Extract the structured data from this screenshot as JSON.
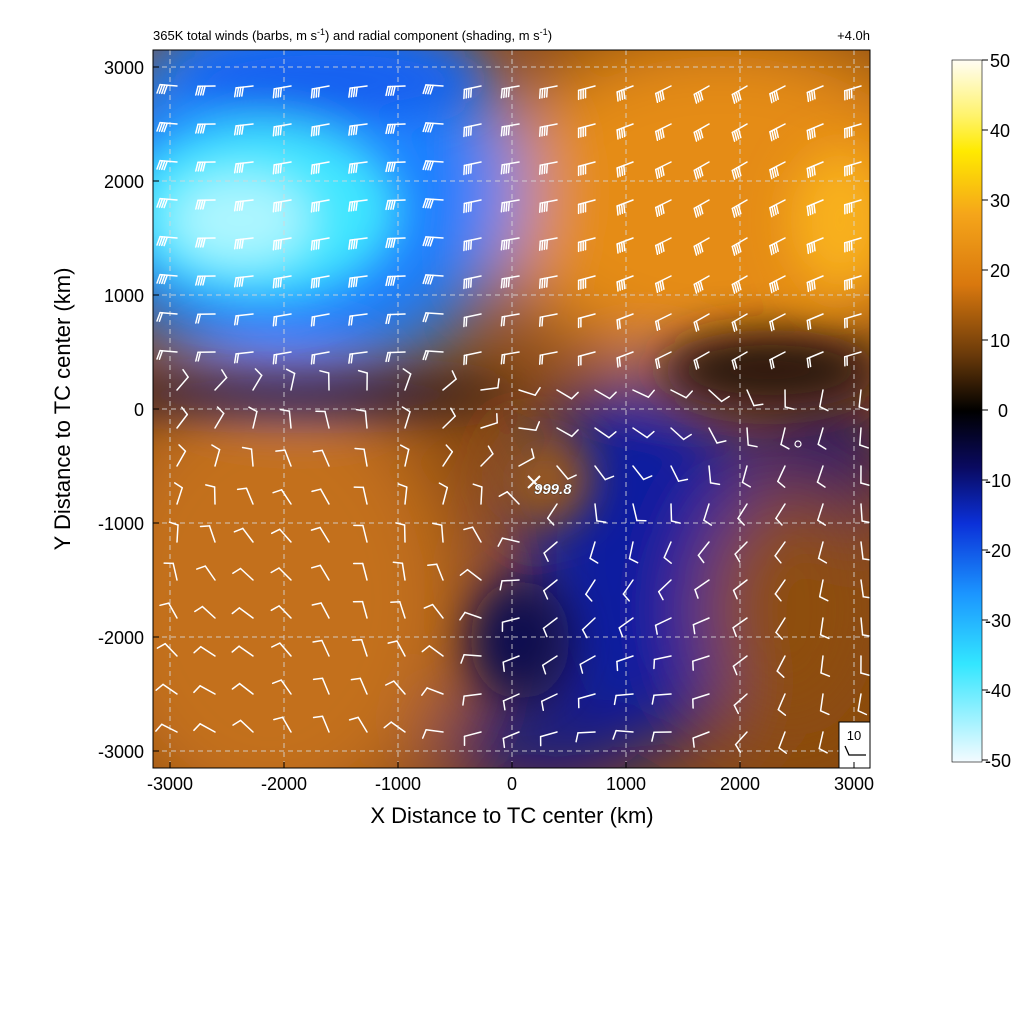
{
  "figure": {
    "title": "365K total winds (barbs, m s",
    "title_sup1": "-1",
    "title_mid": ") and radial component (shading, m s",
    "title_sup2": "-1",
    "title_end": ")",
    "time_label": "+4.0h",
    "center_marker_label": "999.8",
    "reference_barb_label": "10"
  },
  "chart_data": {
    "type": "heatmap",
    "title": "365K total winds (barbs, m s-1) and radial component (shading, m s-1)",
    "xlabel": "X Distance to TC center (km)",
    "ylabel": "Y Distance to TC center (km)",
    "xlim": [
      -3150,
      3150
    ],
    "ylim": [
      -3150,
      3150
    ],
    "x_ticks": [
      -3000,
      -2000,
      -1000,
      0,
      1000,
      2000,
      3000
    ],
    "y_ticks": [
      -3000,
      -2000,
      -1000,
      0,
      1000,
      2000,
      3000
    ],
    "x_tick_labels": [
      "-3000",
      "-2000",
      "-1000",
      "0",
      "1000",
      "2000",
      "3000"
    ],
    "y_tick_labels": [
      "-3000",
      "-2000",
      "-1000",
      "0",
      "1000",
      "2000",
      "3000"
    ],
    "grid": true,
    "colorbar": {
      "min": -50,
      "max": 50,
      "ticks": [
        50,
        40,
        30,
        20,
        10,
        0,
        -10,
        -20,
        -30,
        -40,
        -50
      ],
      "tick_labels": [
        "50",
        "40",
        "30",
        "20",
        "10",
        "0",
        "-10",
        "-20",
        "-30",
        "-40",
        "-50"
      ],
      "colors": [
        "#f4fbff",
        "#33f0ff",
        "#20a8ff",
        "#0a3cd8",
        "#080830",
        "#000000",
        "#5a2f0a",
        "#c8700e",
        "#f59a18",
        "#ffd800",
        "#ffff00",
        "#fff8e0"
      ]
    },
    "regions": [
      {
        "name": "inflow-northwest",
        "x": -1900,
        "y": 1800,
        "value": -40
      },
      {
        "name": "outflow-northeast",
        "x": 1700,
        "y": 2000,
        "value": 20
      },
      {
        "name": "outflow-southwest",
        "x": -1800,
        "y": -1400,
        "value": 10
      },
      {
        "name": "inflow-south-central",
        "x": 900,
        "y": -1200,
        "value": -10
      }
    ],
    "storm_center": {
      "x": 250,
      "y": -700,
      "min_pressure": 999.8
    },
    "reference_barb_speed": 10
  }
}
